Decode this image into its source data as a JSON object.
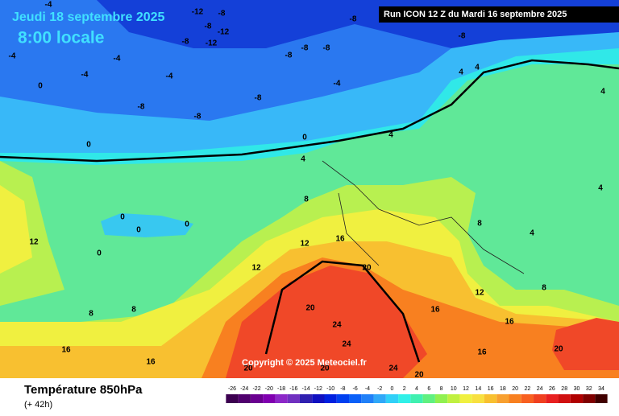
{
  "header": {
    "date": "Jeudi 18 septembre 2025",
    "time": "8:00 locale",
    "run": "Run ICON 12 Z du Mardi 16 septembre 2025",
    "copyright": "Copyright © 2025 Meteociel.fr"
  },
  "footer": {
    "title": "Température 850hPa",
    "subtitle": "(+ 42h)"
  },
  "legend": {
    "labels": [
      -26,
      -24,
      -22,
      -20,
      -18,
      -16,
      -14,
      -12,
      -10,
      -8,
      -6,
      -4,
      -2,
      0,
      2,
      4,
      6,
      8,
      10,
      12,
      14,
      16,
      18,
      20,
      22,
      24,
      26,
      28,
      30,
      32,
      34
    ],
    "colors": [
      "#3c0050",
      "#50006e",
      "#6a0090",
      "#8000b0",
      "#8c28c8",
      "#7030c0",
      "#3020b0",
      "#1010c0",
      "#0020e0",
      "#0040f0",
      "#0a60f8",
      "#2080f8",
      "#30a8f8",
      "#30d0f8",
      "#30f0e8",
      "#40f0b0",
      "#60f080",
      "#90f050",
      "#c0f040",
      "#f0f040",
      "#f8e040",
      "#f8c030",
      "#f8a030",
      "#f88020",
      "#f86020",
      "#f04020",
      "#e82020",
      "#d01010",
      "#b00000",
      "#800000",
      "#400000"
    ]
  },
  "contour_labels": [
    -12,
    -8,
    -8,
    -12,
    -8,
    -12,
    -8,
    -8,
    -8,
    -8,
    -8,
    -8,
    -8,
    -8,
    -4,
    -4,
    -4,
    -4,
    -4,
    -4,
    0,
    0,
    0,
    4,
    4,
    4,
    4,
    4,
    4,
    4,
    8,
    8,
    8,
    12,
    12,
    12,
    12,
    16,
    16,
    16,
    16,
    16,
    16,
    20,
    20,
    20,
    20,
    20,
    20,
    24,
    24,
    24,
    0,
    0,
    0,
    0,
    8,
    8
  ]
}
